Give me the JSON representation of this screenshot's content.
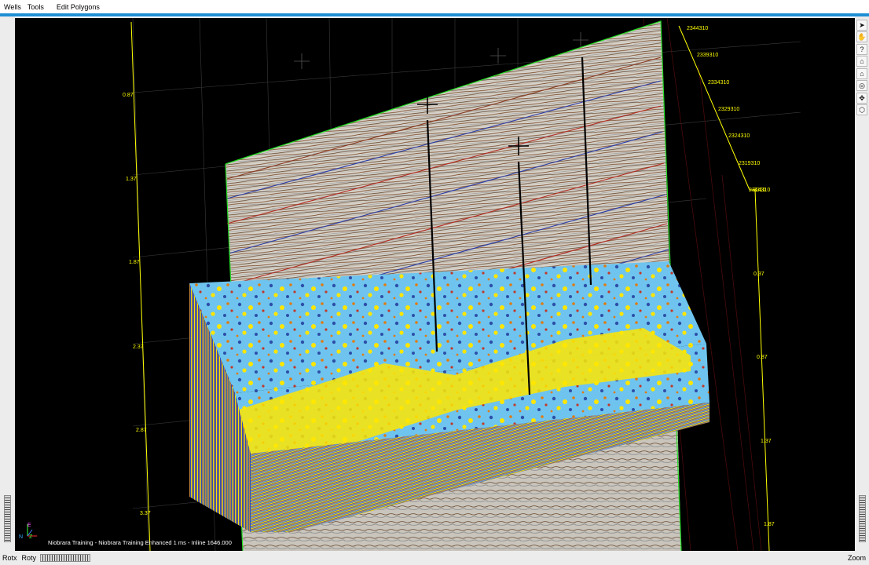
{
  "menu": {
    "items": [
      "Wells",
      "Tools",
      "Edit Polygons"
    ]
  },
  "viewer": {
    "caption": "Niobrara Training - Niobrara Training Enhanced 1 ms - Inline 1646.000",
    "time_axis_left": [
      "0.87",
      "1.37",
      "1.87",
      "2.37",
      "2.87",
      "3.37"
    ],
    "time_axis_right": [
      "0.37",
      "0.87",
      "1.37",
      "1.87"
    ],
    "coord_axis": [
      "2344310",
      "2339310",
      "2334310",
      "2329310",
      "2324310",
      "2319310",
      "2314310"
    ],
    "coord_overlap": "3310",
    "orientation_axes": {
      "z": "Z",
      "n": "N",
      "e": "E"
    }
  },
  "toolbar": {
    "tools": [
      {
        "name": "select",
        "icon": "arrow-pointer-icon",
        "glyph": "➤"
      },
      {
        "name": "pan",
        "icon": "hand-icon",
        "glyph": "✋"
      },
      {
        "name": "help",
        "icon": "question-icon",
        "glyph": "?"
      },
      {
        "name": "home",
        "icon": "home-icon",
        "glyph": "⌂"
      },
      {
        "name": "set-home",
        "icon": "set-home-icon",
        "glyph": "⌂"
      },
      {
        "name": "view-all",
        "icon": "view-all-icon",
        "glyph": "◎"
      },
      {
        "name": "seek",
        "icon": "seek-icon",
        "glyph": "✥"
      },
      {
        "name": "perspective",
        "icon": "perspective-icon",
        "glyph": "⬡"
      }
    ]
  },
  "status": {
    "rotx": "Rotx",
    "roty": "Roty",
    "zoom": "Zoom"
  },
  "colors": {
    "accent": "#1e8fd4",
    "axis": "#ffff00",
    "plane_edge": "#22dd22",
    "background": "#000000"
  }
}
